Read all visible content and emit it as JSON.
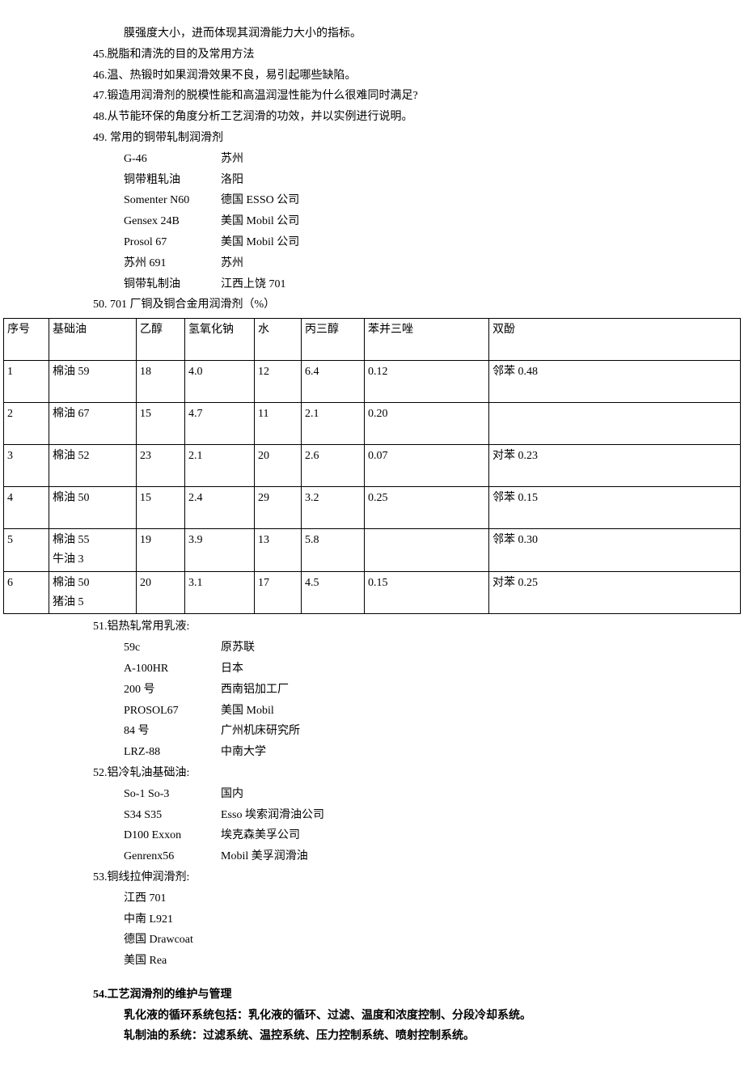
{
  "paragraphs": {
    "topline": "膜强度大小，进而体现其润滑能力大小的指标。",
    "p45": "45.脱脂和清洗的目的及常用方法",
    "p46": "46.温、热锻时如果润滑效果不良，易引起哪些缺陷。",
    "p47": "47.锻造用润滑剂的脱模性能和高温润湿性能为什么很难同时满足?",
    "p48": "48.从节能环保的角度分析工艺润滑的功效，并以实例进行说明。",
    "p49": "49. 常用的铜带轧制润滑剂",
    "p50": "50. 701 厂铜及铜合金用润滑剂（%）",
    "p51": "51.铝热轧常用乳液:",
    "p52": "52.铝冷轧油基础油:",
    "p53": "53.铜线拉伸润滑剂:",
    "p54_title": "54.工艺润滑剂的维护与管理",
    "p54_line1": "乳化液的循环系统包括：乳化液的循环、过滤、温度和浓度控制、分段冷却系统。",
    "p54_line2": "轧制油的系统：过滤系统、温控系统、压力控制系统、喷射控制系统。"
  },
  "list49": [
    {
      "left": "G-46",
      "right": "苏州",
      "lw": "w120"
    },
    {
      "left": "铜带粗轧油",
      "right": "洛阳",
      "lw": "w120"
    },
    {
      "left": "Somenter N60",
      "right": "德国 ESSO 公司",
      "lw": "w120"
    },
    {
      "left": "Gensex 24B",
      "right": "美国 Mobil 公司",
      "lw": "w120"
    },
    {
      "left": "Prosol 67",
      "right": " 美国 Mobil 公司",
      "lw": "w120"
    },
    {
      "left": "苏州 691",
      "right": "苏州",
      "lw": "w120"
    },
    {
      "left": "铜带轧制油",
      "right": " 江西上饶 701",
      "lw": "w120"
    }
  ],
  "table50": {
    "headers": [
      "序号",
      "基础油",
      "乙醇",
      "氢氧化钠",
      "水",
      "丙三醇",
      "苯并三唑",
      "双酚"
    ],
    "col_widths": [
      "56px",
      "108px",
      "60px",
      "86px",
      "58px",
      "78px",
      "154px",
      "auto"
    ],
    "rows": [
      [
        "1",
        "棉油 59",
        "18",
        "4.0",
        "12",
        "6.4",
        "0.12",
        "邻苯 0.48"
      ],
      [
        "2",
        "棉油 67",
        "15",
        "4.7",
        "11",
        "2.1",
        "0.20",
        ""
      ],
      [
        "3",
        "棉油 52",
        "23",
        "2.1",
        "20",
        "2.6",
        "0.07",
        "对苯 0.23"
      ],
      [
        "4",
        "棉油 50",
        "15",
        "2.4",
        "29",
        "3.2",
        "0.25",
        "邻苯 0.15"
      ],
      [
        "5",
        "棉油 55\n牛油 3",
        "19",
        "3.9",
        "13",
        "5.8",
        "",
        "邻苯 0.30"
      ],
      [
        "6",
        "棉油 50\n猪油 5",
        "20",
        "3.1",
        "17",
        "4.5",
        "0.15",
        "对苯 0.25"
      ]
    ]
  },
  "list51": [
    {
      "left": "59c",
      "right": " 原苏联",
      "lw": "w120"
    },
    {
      "left": "A-100HR",
      "right": "日本",
      "lw": "w120"
    },
    {
      "left": "200 号",
      "right": " 西南铝加工厂",
      "lw": "w120"
    },
    {
      "left": "PROSOL67",
      "right": "美国 Mobil",
      "lw": "w120"
    },
    {
      "left": "84 号",
      "right": " 广州机床研究所",
      "lw": "w120"
    },
    {
      "left": "LRZ-88",
      "right": " 中南大学",
      "lw": "w120"
    }
  ],
  "list52": [
    {
      "left": "So-1 So-3",
      "right": " 国内",
      "lw": "w120"
    },
    {
      "left": "S34  S35",
      "right": " Esso 埃索润滑油公司",
      "lw": "w120"
    },
    {
      "left": "D100  Exxon",
      "right": " 埃克森美孚公司",
      "lw": "w120"
    },
    {
      "left": "Genrenx56",
      "right": "  Mobil 美孚润滑油",
      "lw": "w120"
    }
  ],
  "list53": [
    "江西 701",
    "中南 L921",
    "德国 Drawcoat",
    "美国 Rea"
  ]
}
